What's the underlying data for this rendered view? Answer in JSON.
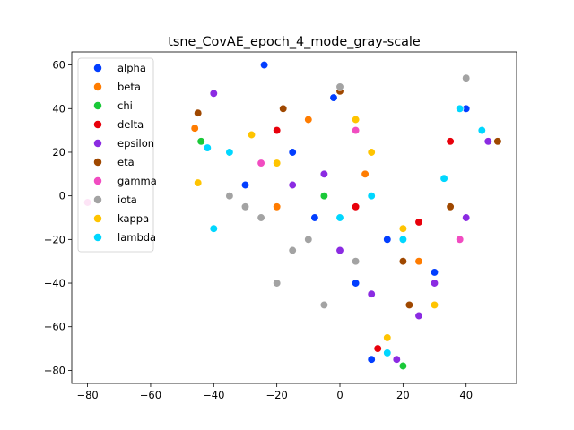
{
  "chart_data": {
    "type": "scatter",
    "title": "tsne_CovAE_epoch_4_mode_gray-scale",
    "xlabel": "",
    "ylabel": "",
    "xlim": [
      -85,
      56
    ],
    "ylim": [
      -86,
      66
    ],
    "xticks": [
      -80,
      -60,
      -40,
      -20,
      0,
      20,
      40
    ],
    "yticks": [
      -80,
      -60,
      -40,
      -20,
      0,
      20,
      40,
      60
    ],
    "grid": false,
    "legend_position": "top-left",
    "series": [
      {
        "name": "alpha",
        "color": "#023eff",
        "values": [
          [
            -24,
            60
          ],
          [
            -15,
            20
          ],
          [
            -8,
            -10
          ],
          [
            5,
            -40
          ],
          [
            10,
            -75
          ],
          [
            30,
            -35
          ],
          [
            40,
            40
          ],
          [
            -2,
            45
          ],
          [
            15,
            -20
          ],
          [
            -30,
            5
          ]
        ]
      },
      {
        "name": "beta",
        "color": "#ff7c00",
        "values": [
          [
            -46,
            31
          ],
          [
            -10,
            35
          ],
          [
            8,
            10
          ],
          [
            25,
            -30
          ],
          [
            -20,
            -5
          ]
        ]
      },
      {
        "name": "chi",
        "color": "#1ac938",
        "values": [
          [
            -44,
            25
          ],
          [
            20,
            -78
          ],
          [
            -5,
            0
          ]
        ]
      },
      {
        "name": "delta",
        "color": "#e8000b",
        "values": [
          [
            -20,
            30
          ],
          [
            5,
            -5
          ],
          [
            25,
            -12
          ],
          [
            12,
            -70
          ],
          [
            35,
            25
          ],
          [
            -35,
            20
          ]
        ]
      },
      {
        "name": "epsilon",
        "color": "#8b2be2",
        "values": [
          [
            -40,
            47
          ],
          [
            -5,
            10
          ],
          [
            10,
            -45
          ],
          [
            18,
            -75
          ],
          [
            40,
            -10
          ],
          [
            47,
            25
          ],
          [
            0,
            -25
          ],
          [
            25,
            -55
          ],
          [
            -15,
            5
          ],
          [
            30,
            -40
          ]
        ]
      },
      {
        "name": "eta",
        "color": "#9f4800",
        "values": [
          [
            -45,
            38
          ],
          [
            0,
            48
          ],
          [
            20,
            -30
          ],
          [
            35,
            -5
          ],
          [
            50,
            25
          ],
          [
            22,
            -50
          ],
          [
            -18,
            40
          ]
        ]
      },
      {
        "name": "gamma",
        "color": "#f14cc1",
        "values": [
          [
            -80,
            -3
          ],
          [
            -25,
            15
          ],
          [
            5,
            30
          ],
          [
            38,
            -20
          ],
          [
            45,
            30
          ]
        ]
      },
      {
        "name": "iota",
        "color": "#a3a3a3",
        "values": [
          [
            -25,
            -10
          ],
          [
            -30,
            -5
          ],
          [
            -15,
            -25
          ],
          [
            0,
            50
          ],
          [
            -5,
            -50
          ],
          [
            5,
            -30
          ],
          [
            -20,
            -40
          ],
          [
            40,
            54
          ],
          [
            -35,
            0
          ],
          [
            -10,
            -20
          ]
        ]
      },
      {
        "name": "kappa",
        "color": "#ffc400",
        "values": [
          [
            -45,
            6
          ],
          [
            -20,
            15
          ],
          [
            10,
            20
          ],
          [
            20,
            -15
          ],
          [
            15,
            -65
          ],
          [
            -28,
            28
          ],
          [
            30,
            -50
          ],
          [
            5,
            35
          ]
        ]
      },
      {
        "name": "lambda",
        "color": "#00d7ff",
        "values": [
          [
            -42,
            22
          ],
          [
            -35,
            20
          ],
          [
            0,
            -10
          ],
          [
            10,
            0
          ],
          [
            33,
            8
          ],
          [
            45,
            30
          ],
          [
            38,
            40
          ],
          [
            20,
            -20
          ],
          [
            -40,
            -15
          ],
          [
            15,
            -72
          ]
        ]
      }
    ]
  }
}
